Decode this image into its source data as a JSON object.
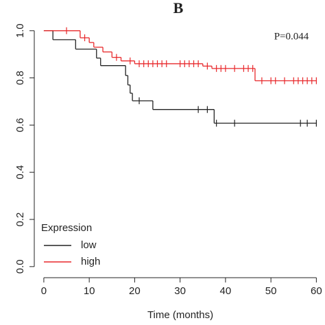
{
  "chart_data": {
    "type": "survival",
    "title": "B",
    "annotation": "P=0.044",
    "x_label": "Time (months)",
    "legend_title": "Expression",
    "xlim": [
      -2.1,
      61.3
    ],
    "xticks": [
      0,
      10,
      20,
      30,
      40,
      50,
      60
    ],
    "ylim": [
      -0.047,
      1.043
    ],
    "yticks": [
      {
        "value": 0,
        "label": "0.0"
      },
      {
        "value": 0.2,
        "label": "0.2"
      },
      {
        "value": 0.4,
        "label": "0.4"
      },
      {
        "value": 0.6,
        "label": "0.6"
      },
      {
        "value": 0.8,
        "label": "0.8"
      },
      {
        "value": 1,
        "label": "1.0"
      }
    ],
    "series": [
      {
        "name": "low",
        "color": "#222222",
        "x": [
          0,
          2,
          7,
          11.6,
          12.5,
          18,
          18.5,
          19,
          19.5,
          24,
          37.5,
          60
        ],
        "values": [
          1,
          0.962,
          0.922,
          0.884,
          0.852,
          0.81,
          0.77,
          0.735,
          0.703,
          0.666,
          0.608,
          0.608
        ],
        "censored_x": [
          21,
          34,
          36,
          38,
          42,
          56.5,
          58,
          60
        ],
        "censored_values": [
          0.703,
          0.666,
          0.666,
          0.608,
          0.608,
          0.608,
          0.608,
          0.608
        ]
      },
      {
        "name": "high",
        "color": "#e8272a",
        "x": [
          0,
          8,
          10,
          11,
          13,
          15,
          17,
          20,
          35,
          37,
          46.5,
          60
        ],
        "values": [
          1,
          0.97,
          0.95,
          0.93,
          0.91,
          0.887,
          0.872,
          0.86,
          0.85,
          0.84,
          0.788,
          0.788
        ],
        "censored_x": [
          5,
          9,
          16,
          19,
          21,
          22,
          23,
          24,
          25,
          26,
          27,
          30,
          31,
          32,
          33,
          34,
          36,
          38,
          39,
          40,
          42,
          44,
          45,
          46,
          48,
          50,
          51,
          53,
          55,
          56,
          57,
          58,
          59,
          60
        ],
        "censored_values": [
          1,
          0.97,
          0.887,
          0.872,
          0.86,
          0.86,
          0.86,
          0.86,
          0.86,
          0.86,
          0.86,
          0.86,
          0.86,
          0.86,
          0.86,
          0.86,
          0.85,
          0.84,
          0.84,
          0.84,
          0.84,
          0.84,
          0.84,
          0.84,
          0.788,
          0.788,
          0.788,
          0.788,
          0.788,
          0.788,
          0.788,
          0.788,
          0.788,
          0.788
        ]
      }
    ]
  }
}
